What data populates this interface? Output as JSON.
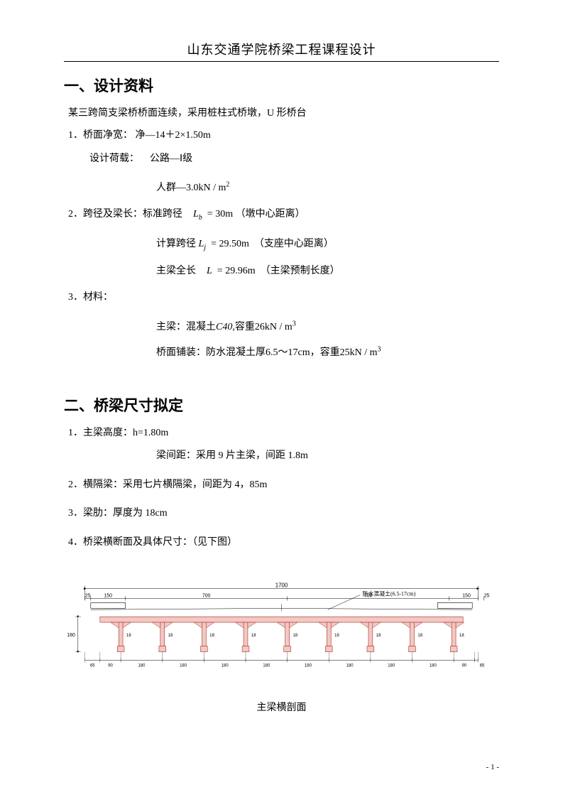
{
  "header": {
    "title": "山东交通学院桥梁工程课程设计"
  },
  "section1": {
    "title": "一、设计资料",
    "intro": "某三跨简支梁桥桥面连续，采用桩柱式桥墩，U 形桥台",
    "i1_label": "1．桥面净宽：",
    "i1_formula": "净—14＋2×1.50m",
    "i1b_label": "设计荷载：",
    "i1b_value": "公路—Ⅰ级",
    "crowd_prefix": "人群—",
    "crowd_val": "3.0kN / m",
    "crowd_sup": "2",
    "i2_label": "2．跨径及梁长：标准跨径",
    "i2_sym": "L",
    "i2_sub": "b",
    "i2_eq": "=",
    "i2_val": "30m",
    "i2_note": "（墩中心距离）",
    "i2b_label": "计算跨径",
    "i2b_sym": "L",
    "i2b_sub": "j",
    "i2b_eq": "=",
    "i2b_val": "29.50m",
    "i2b_note": "（支座中心距离）",
    "i2c_label": "主梁全长",
    "i2c_sym": "L",
    "i2c_eq": "=",
    "i2c_val": "29.96m",
    "i2c_note": "（主梁预制长度）",
    "i3_label": "3．材料：",
    "mat1_prefix": "主梁：混凝土",
    "mat1_c": "C40",
    "mat1_mid": ",容重",
    "mat1_val": "26kN / m",
    "mat1_sup": "3",
    "mat2_prefix": "桥面铺装：防水混凝土厚",
    "mat2_val1": "6.5～17cm",
    "mat2_mid": "，容重",
    "mat2_val2": "25kN / m",
    "mat2_sup": "3"
  },
  "section2": {
    "title": "二、桥梁尺寸拟定",
    "i1": "1．主梁高度：h=1.80m",
    "i1b": "梁间距：采用 9 片主梁，间距 1.8m",
    "i2": "2．横隔梁：采用七片横隔梁，间距为 4，85m",
    "i3": "3．梁肋：厚度为 18cm",
    "i4": "4．桥梁横断面及具体尺寸：（见下图）"
  },
  "diagram": {
    "caption": "主梁横剖面",
    "top_label": "1700",
    "callout": "防水混凝土(6.5-17cm)",
    "h_label": "180",
    "left_margin": "25",
    "right_margin": "25",
    "barrier_w": "150",
    "road_w": "700",
    "rib_w": "18",
    "bottom_edge": "65",
    "bottom_first": "90",
    "spacing": "180",
    "beam_fill": "#f4c7c2",
    "beam_stroke": "#a03028",
    "dim_color": "#000000",
    "bg": "#ffffff",
    "n_beams": 9
  },
  "footer": {
    "page": "- 1 -"
  }
}
